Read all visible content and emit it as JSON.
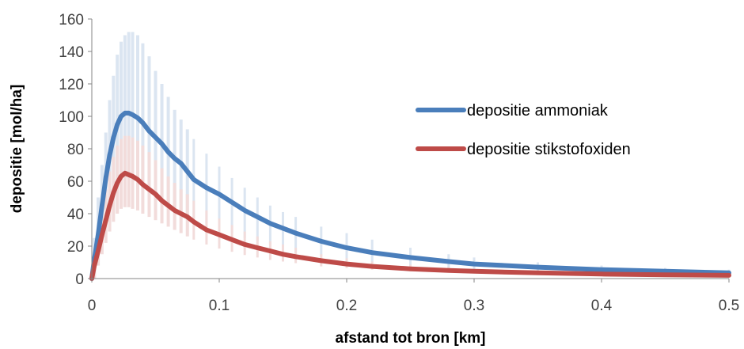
{
  "chart_data": {
    "type": "line",
    "xlabel": "afstand tot bron [km]",
    "ylabel": "depositie [mol/ha]",
    "xlim": [
      0,
      0.5
    ],
    "ylim": [
      0,
      160
    ],
    "x_ticks": [
      0,
      0.1,
      0.2,
      0.3,
      0.4,
      0.5
    ],
    "x_tick_labels": [
      "0",
      "0.1",
      "0.2",
      "0.3",
      "0.4",
      "0.5"
    ],
    "y_ticks": [
      0,
      20,
      40,
      60,
      80,
      100,
      120,
      140,
      160
    ],
    "y_tick_labels": [
      "0",
      "20",
      "40",
      "60",
      "80",
      "100",
      "120",
      "140",
      "160"
    ],
    "grid": false,
    "legend_position": "right",
    "series": [
      {
        "name": "depositie ammoniak",
        "color": "#4a7ebb",
        "band_color": "#dbe5f1",
        "points": [
          [
            0.0,
            0
          ],
          [
            0.002,
            12
          ],
          [
            0.005,
            27
          ],
          [
            0.008,
            45
          ],
          [
            0.011,
            62
          ],
          [
            0.014,
            76
          ],
          [
            0.017,
            87
          ],
          [
            0.02,
            95
          ],
          [
            0.023,
            100
          ],
          [
            0.026,
            102
          ],
          [
            0.029,
            102
          ],
          [
            0.032,
            101
          ],
          [
            0.036,
            99
          ],
          [
            0.04,
            96
          ],
          [
            0.045,
            91
          ],
          [
            0.05,
            87
          ],
          [
            0.055,
            83
          ],
          [
            0.06,
            78
          ],
          [
            0.065,
            74
          ],
          [
            0.07,
            71
          ],
          [
            0.075,
            66
          ],
          [
            0.08,
            61
          ],
          [
            0.09,
            56
          ],
          [
            0.1,
            52
          ],
          [
            0.11,
            47
          ],
          [
            0.12,
            42
          ],
          [
            0.13,
            38
          ],
          [
            0.14,
            34
          ],
          [
            0.15,
            31
          ],
          [
            0.16,
            28
          ],
          [
            0.18,
            23
          ],
          [
            0.2,
            19
          ],
          [
            0.22,
            16
          ],
          [
            0.25,
            13
          ],
          [
            0.28,
            10.5
          ],
          [
            0.3,
            9
          ],
          [
            0.35,
            7
          ],
          [
            0.4,
            5.5
          ],
          [
            0.45,
            4.5
          ],
          [
            0.5,
            3.5
          ]
        ],
        "band_upper": [
          [
            0.002,
            25
          ],
          [
            0.005,
            50
          ],
          [
            0.008,
            70
          ],
          [
            0.011,
            90
          ],
          [
            0.014,
            110
          ],
          [
            0.017,
            125
          ],
          [
            0.02,
            138
          ],
          [
            0.023,
            146
          ],
          [
            0.026,
            150
          ],
          [
            0.029,
            152
          ],
          [
            0.032,
            152
          ],
          [
            0.036,
            150
          ],
          [
            0.04,
            145
          ],
          [
            0.045,
            137
          ],
          [
            0.05,
            128
          ],
          [
            0.055,
            120
          ],
          [
            0.06,
            112
          ],
          [
            0.065,
            104
          ],
          [
            0.07,
            98
          ],
          [
            0.075,
            92
          ],
          [
            0.08,
            86
          ],
          [
            0.09,
            77
          ],
          [
            0.1,
            69
          ],
          [
            0.11,
            62
          ],
          [
            0.12,
            56
          ],
          [
            0.13,
            50
          ],
          [
            0.14,
            45
          ],
          [
            0.15,
            41
          ],
          [
            0.16,
            38
          ],
          [
            0.18,
            32
          ],
          [
            0.2,
            28
          ],
          [
            0.22,
            24
          ],
          [
            0.25,
            19
          ],
          [
            0.28,
            15
          ],
          [
            0.3,
            13
          ],
          [
            0.35,
            10
          ],
          [
            0.4,
            8
          ],
          [
            0.45,
            6.5
          ],
          [
            0.5,
            5.5
          ]
        ],
        "band_lower": [
          [
            0.002,
            0
          ],
          [
            0.005,
            10
          ],
          [
            0.008,
            22
          ],
          [
            0.011,
            33
          ],
          [
            0.014,
            42
          ],
          [
            0.017,
            50
          ],
          [
            0.02,
            56
          ],
          [
            0.023,
            60
          ],
          [
            0.026,
            62
          ],
          [
            0.029,
            62
          ],
          [
            0.032,
            61
          ],
          [
            0.036,
            59
          ],
          [
            0.04,
            57
          ],
          [
            0.045,
            54
          ],
          [
            0.05,
            51
          ],
          [
            0.055,
            49
          ],
          [
            0.06,
            46
          ],
          [
            0.065,
            44
          ],
          [
            0.07,
            42
          ],
          [
            0.075,
            39
          ],
          [
            0.08,
            37
          ],
          [
            0.09,
            34
          ],
          [
            0.1,
            31
          ],
          [
            0.11,
            28
          ],
          [
            0.12,
            25
          ],
          [
            0.13,
            23
          ],
          [
            0.14,
            21
          ],
          [
            0.15,
            19
          ],
          [
            0.16,
            17
          ],
          [
            0.18,
            14
          ],
          [
            0.2,
            12
          ],
          [
            0.22,
            10
          ],
          [
            0.25,
            8
          ],
          [
            0.28,
            6.5
          ],
          [
            0.3,
            5.5
          ],
          [
            0.35,
            4.5
          ],
          [
            0.4,
            3.5
          ],
          [
            0.45,
            3
          ],
          [
            0.5,
            2.5
          ]
        ]
      },
      {
        "name": "depositie stikstofoxiden",
        "color": "#be4b48",
        "band_color": "#f2dcdb",
        "points": [
          [
            0.0,
            0
          ],
          [
            0.002,
            8
          ],
          [
            0.005,
            17
          ],
          [
            0.008,
            27
          ],
          [
            0.011,
            36
          ],
          [
            0.014,
            45
          ],
          [
            0.017,
            53
          ],
          [
            0.02,
            59
          ],
          [
            0.023,
            63
          ],
          [
            0.026,
            65
          ],
          [
            0.029,
            64
          ],
          [
            0.032,
            63
          ],
          [
            0.036,
            61
          ],
          [
            0.04,
            58
          ],
          [
            0.045,
            55
          ],
          [
            0.05,
            52
          ],
          [
            0.055,
            48
          ],
          [
            0.06,
            45
          ],
          [
            0.065,
            42
          ],
          [
            0.07,
            40
          ],
          [
            0.075,
            38
          ],
          [
            0.08,
            35
          ],
          [
            0.09,
            30
          ],
          [
            0.1,
            27
          ],
          [
            0.11,
            24
          ],
          [
            0.12,
            21
          ],
          [
            0.13,
            19
          ],
          [
            0.14,
            17
          ],
          [
            0.15,
            15
          ],
          [
            0.16,
            13.5
          ],
          [
            0.18,
            11
          ],
          [
            0.2,
            9
          ],
          [
            0.22,
            7.5
          ],
          [
            0.25,
            6
          ],
          [
            0.28,
            5
          ],
          [
            0.3,
            4.5
          ],
          [
            0.35,
            3.5
          ],
          [
            0.4,
            2.8
          ],
          [
            0.45,
            2.3
          ],
          [
            0.5,
            2
          ]
        ],
        "band_upper": [
          [
            0.002,
            14
          ],
          [
            0.005,
            28
          ],
          [
            0.008,
            42
          ],
          [
            0.011,
            55
          ],
          [
            0.014,
            66
          ],
          [
            0.017,
            75
          ],
          [
            0.02,
            82
          ],
          [
            0.023,
            86
          ],
          [
            0.026,
            88
          ],
          [
            0.029,
            88
          ],
          [
            0.032,
            87
          ],
          [
            0.036,
            85
          ],
          [
            0.04,
            82
          ],
          [
            0.045,
            78
          ],
          [
            0.05,
            73
          ],
          [
            0.055,
            68
          ],
          [
            0.06,
            63
          ],
          [
            0.065,
            59
          ],
          [
            0.07,
            55
          ],
          [
            0.075,
            52
          ],
          [
            0.08,
            48
          ],
          [
            0.09,
            42
          ],
          [
            0.1,
            37
          ],
          [
            0.11,
            33
          ],
          [
            0.12,
            29
          ],
          [
            0.13,
            26
          ],
          [
            0.14,
            23
          ],
          [
            0.15,
            21
          ],
          [
            0.16,
            19
          ],
          [
            0.18,
            15
          ],
          [
            0.2,
            12.5
          ],
          [
            0.22,
            10.5
          ],
          [
            0.25,
            8.5
          ],
          [
            0.28,
            7
          ],
          [
            0.3,
            6
          ],
          [
            0.35,
            5
          ],
          [
            0.4,
            4
          ],
          [
            0.45,
            3.2
          ],
          [
            0.5,
            2.7
          ]
        ],
        "band_lower": [
          [
            0.002,
            0
          ],
          [
            0.005,
            8
          ],
          [
            0.008,
            15
          ],
          [
            0.011,
            22
          ],
          [
            0.014,
            29
          ],
          [
            0.017,
            35
          ],
          [
            0.02,
            40
          ],
          [
            0.023,
            43
          ],
          [
            0.026,
            44
          ],
          [
            0.029,
            44
          ],
          [
            0.032,
            43
          ],
          [
            0.036,
            42
          ],
          [
            0.04,
            40
          ],
          [
            0.045,
            38
          ],
          [
            0.05,
            36
          ],
          [
            0.055,
            34
          ],
          [
            0.06,
            32
          ],
          [
            0.065,
            30
          ],
          [
            0.07,
            28
          ],
          [
            0.075,
            26
          ],
          [
            0.08,
            24
          ],
          [
            0.09,
            21
          ],
          [
            0.1,
            18.5
          ],
          [
            0.11,
            16.5
          ],
          [
            0.12,
            14.5
          ],
          [
            0.13,
            13
          ],
          [
            0.14,
            11.5
          ],
          [
            0.15,
            10.5
          ],
          [
            0.16,
            9.5
          ],
          [
            0.18,
            7.5
          ],
          [
            0.2,
            6.5
          ],
          [
            0.22,
            5.5
          ],
          [
            0.25,
            4.5
          ],
          [
            0.28,
            3.8
          ],
          [
            0.3,
            3.3
          ],
          [
            0.35,
            2.6
          ],
          [
            0.4,
            2.1
          ],
          [
            0.45,
            1.7
          ],
          [
            0.5,
            1.4
          ]
        ]
      }
    ]
  }
}
